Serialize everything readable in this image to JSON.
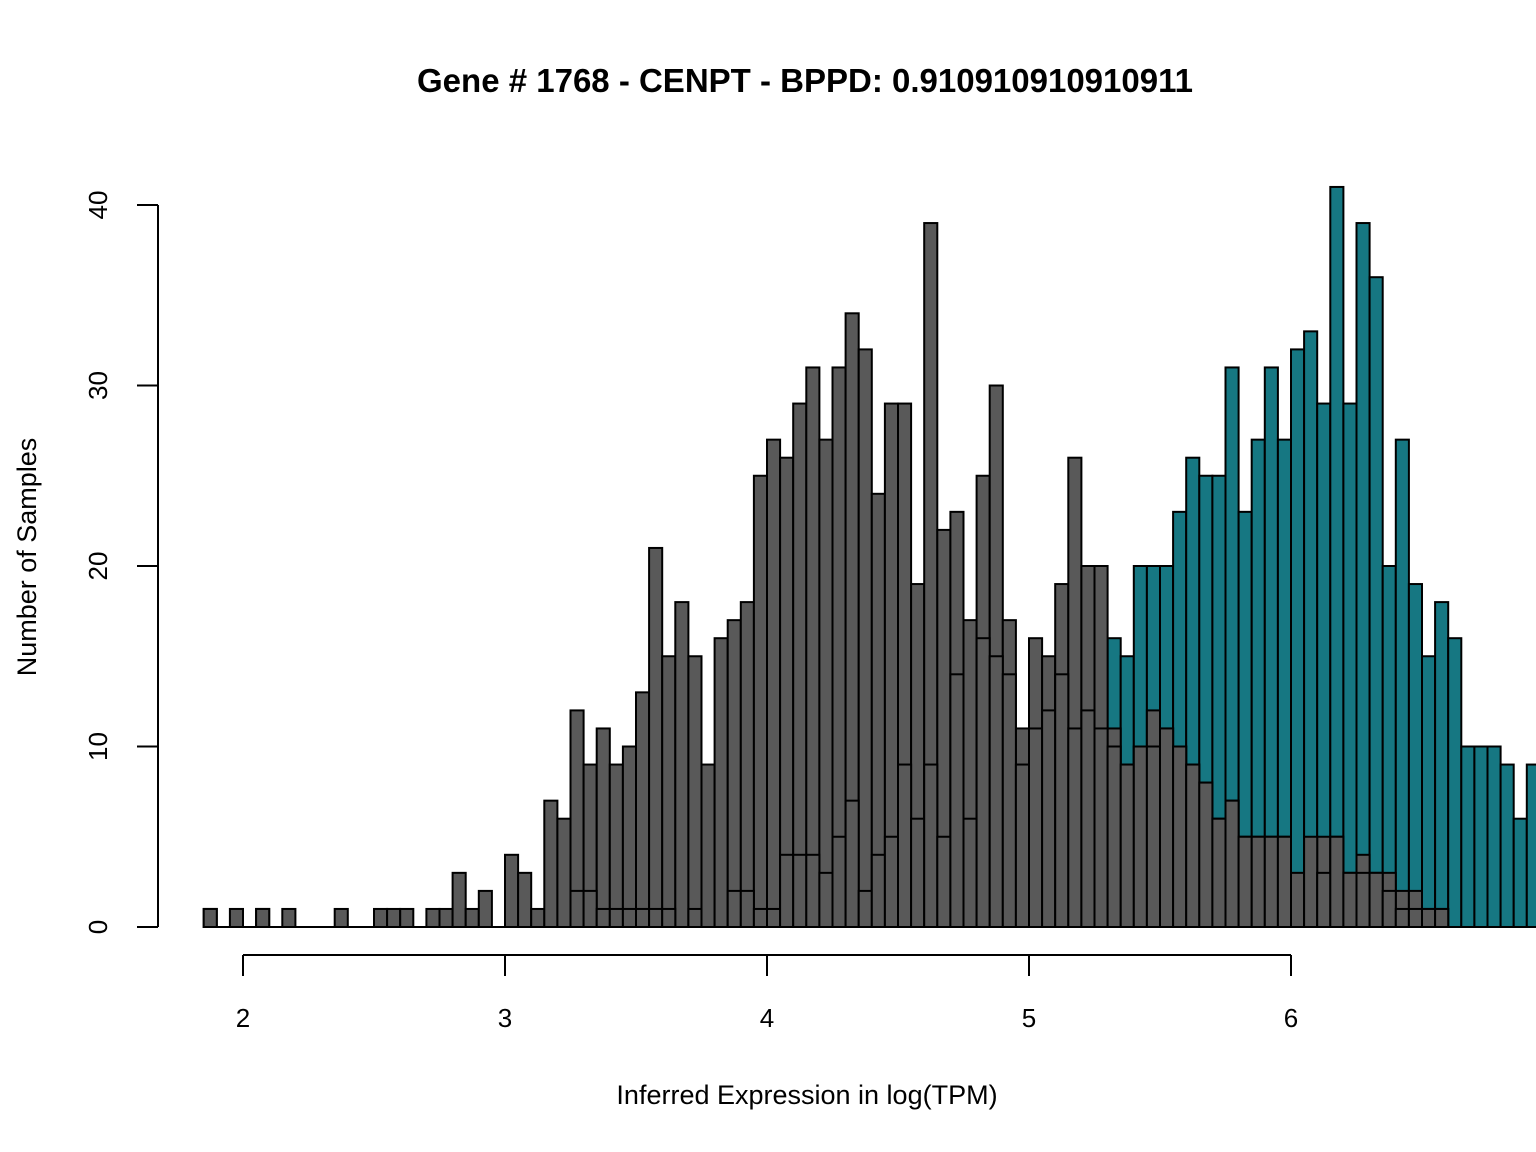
{
  "chart_data": {
    "type": "histogram",
    "title": "Gene # 1768 - CENPT - BPPD: 0.910910910910911",
    "xlabel": "Inferred Expression in log(TPM)",
    "ylabel": "Number of Samples",
    "xlim": [
      1.8,
      6.5
    ],
    "ylim": [
      0,
      41
    ],
    "x_ticks": [
      2,
      3,
      4,
      5,
      6
    ],
    "y_ticks": [
      0,
      10,
      20,
      30,
      40
    ],
    "bin_start": 1.85,
    "bin_width": 0.05,
    "series": [
      {
        "color": "#167782",
        "values": [
          1,
          0,
          0,
          0,
          1,
          0,
          0,
          0,
          0,
          0,
          0,
          0,
          0,
          0,
          0,
          0,
          0,
          0,
          0,
          0,
          0,
          0,
          0,
          0,
          0,
          0,
          0,
          0,
          0,
          0,
          0,
          0,
          0,
          0,
          0,
          0,
          0,
          0,
          0,
          0,
          0,
          0,
          0,
          0,
          0,
          0,
          0,
          0,
          0,
          0,
          0,
          0,
          0,
          0,
          0,
          0,
          0,
          0,
          0,
          0,
          0,
          0,
          0,
          0,
          0,
          0,
          0,
          19,
          14,
          16,
          15,
          20,
          20,
          20,
          23,
          26,
          25,
          25,
          31,
          23,
          27,
          31,
          27,
          32,
          33,
          29,
          41,
          29,
          39,
          36,
          20,
          27,
          19,
          15,
          18,
          16,
          10,
          10,
          10,
          9,
          6,
          9,
          8,
          9
        ]
      },
      {
        "color": "#595959",
        "values": [
          1,
          0,
          1,
          0,
          1,
          0,
          1,
          0,
          0,
          0,
          1,
          0,
          0,
          1,
          1,
          1,
          0,
          1,
          1,
          3,
          1,
          2,
          0,
          4,
          3,
          1,
          7,
          6,
          12,
          9,
          11,
          9,
          10,
          13,
          21,
          15,
          18,
          15,
          9,
          16,
          17,
          18,
          25,
          27,
          26,
          29,
          31,
          27,
          31,
          34,
          32,
          24,
          29,
          29,
          19,
          39,
          22,
          23,
          17,
          25,
          30,
          17,
          11,
          16,
          15,
          19,
          26,
          20,
          20,
          11,
          9,
          10,
          12,
          11,
          10,
          9,
          8,
          6,
          7,
          5,
          5,
          5,
          5,
          3,
          4,
          5,
          5,
          3,
          4,
          3,
          3,
          2,
          2,
          1,
          1,
          0,
          0,
          0,
          0,
          0,
          0,
          0,
          0,
          2
        ]
      },
      {
        "color": "#595959",
        "values": [
          0,
          0,
          0,
          0,
          0,
          0,
          0,
          0,
          0,
          0,
          0,
          0,
          0,
          0,
          0,
          0,
          0,
          0,
          0,
          0,
          0,
          0,
          0,
          0,
          0,
          0,
          0,
          0,
          2,
          2,
          1,
          1,
          1,
          1,
          1,
          1,
          0,
          1,
          0,
          0,
          2,
          2,
          1,
          1,
          4,
          4,
          4,
          3,
          5,
          7,
          2,
          4,
          5,
          9,
          6,
          9,
          5,
          14,
          6,
          16,
          15,
          14,
          9,
          11,
          12,
          14,
          11,
          12,
          11,
          10,
          9,
          10,
          10,
          11,
          10,
          9,
          8,
          6,
          7,
          5,
          5,
          5,
          5,
          0,
          5,
          3,
          5,
          3,
          3,
          3,
          2,
          1,
          1,
          1,
          1,
          0,
          0,
          0,
          0,
          0,
          0,
          0,
          0,
          0
        ]
      }
    ]
  }
}
